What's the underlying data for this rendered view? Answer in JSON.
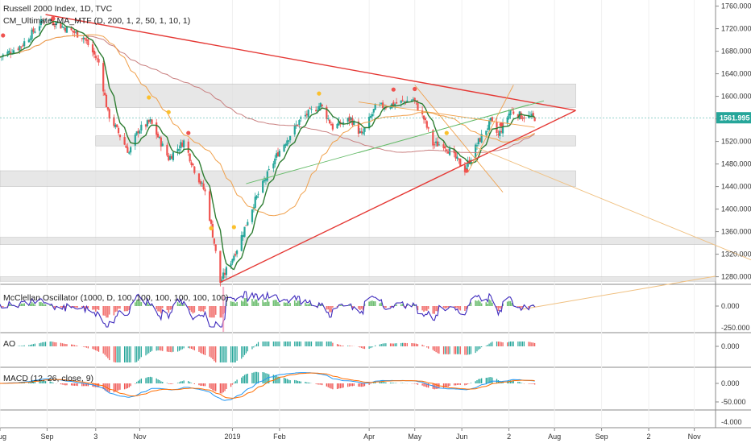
{
  "header": {
    "symbol_title": "Russell 2000 Index, 1D, TVC",
    "indicator_title": "CM_Ultimate_MA_MTF (D, 200, 1, 2, 50, 1, 10, 1)"
  },
  "price_badge": {
    "value": "1561.995",
    "color": "#26a69a"
  },
  "colors": {
    "up": "#26a69a",
    "down": "#ef5350",
    "trend": "#e53935",
    "ma_orange": "#f0a04b",
    "ma_brown": "#c98080",
    "fast_ma": "#2e7d32",
    "mc_line": "#3f2bbd",
    "macd": "#2196f3",
    "signal": "#ff6d00",
    "zone": "#dddddd"
  },
  "chart_data": [
    {
      "type": "candlestick",
      "title": "Russell 2000 Index, 1D, TVC",
      "y_ticks": [
        "1760.000",
        "1720.000",
        "1680.000",
        "1640.000",
        "1600.000",
        "1560.000",
        "1520.000",
        "1480.000",
        "1440.000",
        "1400.000",
        "1360.000",
        "1320.000",
        "1280.000"
      ],
      "ylim": [
        1268,
        1768
      ],
      "x_ticks": [
        "Aug",
        "Sep",
        "3",
        "Nov",
        "2019",
        "Feb",
        "Apr",
        "May",
        "Jun",
        "2",
        "Aug",
        "Sep",
        "2",
        "Nov"
      ],
      "xlim": [
        "2018-08-01",
        "2019-11-15"
      ],
      "last_value": 1561.995,
      "close_path": [
        [
          "2018-08-01",
          1670
        ],
        [
          "2018-08-15",
          1690
        ],
        [
          "2018-08-31",
          1740
        ],
        [
          "2018-09-10",
          1725
        ],
        [
          "2018-09-25",
          1705
        ],
        [
          "2018-10-05",
          1660
        ],
        [
          "2018-10-11",
          1570
        ],
        [
          "2018-10-25",
          1500
        ],
        [
          "2018-10-31",
          1540
        ],
        [
          "2018-11-08",
          1555
        ],
        [
          "2018-11-20",
          1490
        ],
        [
          "2018-11-30",
          1520
        ],
        [
          "2018-12-07",
          1470
        ],
        [
          "2018-12-14",
          1430
        ],
        [
          "2018-12-20",
          1340
        ],
        [
          "2018-12-24",
          1270
        ],
        [
          "2019-01-04",
          1330
        ],
        [
          "2019-01-15",
          1410
        ],
        [
          "2019-01-31",
          1500
        ],
        [
          "2019-02-15",
          1560
        ],
        [
          "2019-02-28",
          1585
        ],
        [
          "2019-03-08",
          1545
        ],
        [
          "2019-03-20",
          1560
        ],
        [
          "2019-03-27",
          1530
        ],
        [
          "2019-04-05",
          1580
        ],
        [
          "2019-04-15",
          1585
        ],
        [
          "2019-04-30",
          1595
        ],
        [
          "2019-05-07",
          1560
        ],
        [
          "2019-05-13",
          1515
        ],
        [
          "2019-05-20",
          1515
        ],
        [
          "2019-06-03",
          1470
        ],
        [
          "2019-06-12",
          1520
        ],
        [
          "2019-06-20",
          1555
        ],
        [
          "2019-06-25",
          1530
        ],
        [
          "2019-07-03",
          1575
        ],
        [
          "2019-07-10",
          1565
        ],
        [
          "2019-07-19",
          1561.995
        ]
      ],
      "zones": [
        [
          1580,
          1622
        ],
        [
          1512,
          1530
        ],
        [
          1440,
          1468
        ],
        [
          1337,
          1350
        ],
        [
          1272,
          1280
        ]
      ],
      "trendlines": [
        {
          "from": [
            "2018-08-31",
            1745
          ],
          "to": [
            "2019-08-15",
            1575
          ]
        },
        {
          "from": [
            "2018-12-24",
            1270
          ],
          "to": [
            "2019-08-15",
            1575
          ]
        }
      ]
    },
    {
      "type": "area",
      "title": "McClellan Oscillator (1000, D, 100, 100, 100, 100, 100, 100)",
      "y_ticks": [
        "0.000",
        "-250.000"
      ]
    },
    {
      "type": "bar",
      "title": "AO",
      "y_ticks": [
        "0.000"
      ]
    },
    {
      "type": "bar",
      "title": "MACD (12, 26, close, 9)",
      "y_ticks": [
        "0.000",
        "-50.000",
        "-4.000"
      ]
    }
  ]
}
